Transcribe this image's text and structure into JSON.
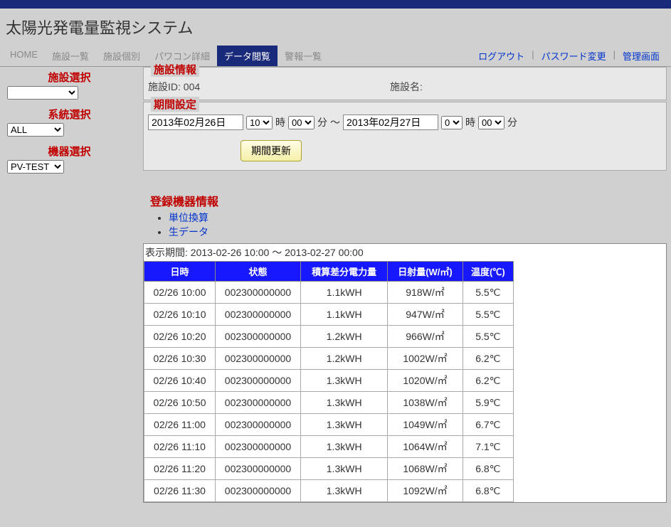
{
  "header": {
    "title": "太陽光発電量監視システム"
  },
  "nav": {
    "items": [
      {
        "label": "HOME"
      },
      {
        "label": "施設一覧"
      },
      {
        "label": "施設個別"
      },
      {
        "label": "パワコン詳細"
      },
      {
        "label": "データ閲覧",
        "active": true
      },
      {
        "label": "警報一覧"
      }
    ],
    "right": [
      {
        "label": "ログアウト"
      },
      {
        "label": "パスワード変更"
      },
      {
        "label": "管理画面"
      }
    ]
  },
  "sidebar": {
    "facility_label": "施設選択",
    "facility_value": "",
    "system_label": "系統選択",
    "system_value": "ALL",
    "device_label": "機器選択",
    "device_value": "PV-TEST"
  },
  "facility_info": {
    "legend": "施設情報",
    "id_label": "施設ID:",
    "id_value": "004",
    "name_label": "施設名:",
    "name_value": ""
  },
  "period": {
    "legend": "期間設定",
    "start_date": "2013年02月26日",
    "start_hour": "10",
    "start_min": "00",
    "tilde": "～",
    "end_date": "2013年02月27日",
    "end_hour": "0",
    "end_min": "00",
    "hour_label": "時",
    "min_label": "分",
    "update_button": "期間更新"
  },
  "registered": {
    "title": "登録機器情報",
    "link_unit": "単位換算",
    "link_raw": "生データ",
    "period_text": "表示期間: 2013-02-26 10:00 ～ 2013-02-27 00:00",
    "columns": [
      "日時",
      "状態",
      "積算差分電力量",
      "日射量(W/㎡)",
      "温度(℃)"
    ],
    "rows": [
      [
        "02/26 10:00",
        "002300000000",
        "1.1kWH",
        "918W/㎡",
        "5.5℃"
      ],
      [
        "02/26 10:10",
        "002300000000",
        "1.1kWH",
        "947W/㎡",
        "5.5℃"
      ],
      [
        "02/26 10:20",
        "002300000000",
        "1.2kWH",
        "966W/㎡",
        "5.5℃"
      ],
      [
        "02/26 10:30",
        "002300000000",
        "1.2kWH",
        "1002W/㎡",
        "6.2℃"
      ],
      [
        "02/26 10:40",
        "002300000000",
        "1.3kWH",
        "1020W/㎡",
        "6.2℃"
      ],
      [
        "02/26 10:50",
        "002300000000",
        "1.3kWH",
        "1038W/㎡",
        "5.9℃"
      ],
      [
        "02/26 11:00",
        "002300000000",
        "1.3kWH",
        "1049W/㎡",
        "6.7℃"
      ],
      [
        "02/26 11:10",
        "002300000000",
        "1.3kWH",
        "1064W/㎡",
        "7.1℃"
      ],
      [
        "02/26 11:20",
        "002300000000",
        "1.3kWH",
        "1068W/㎡",
        "6.8℃"
      ],
      [
        "02/26 11:30",
        "002300000000",
        "1.3kWH",
        "1092W/㎡",
        "6.8℃"
      ]
    ]
  }
}
